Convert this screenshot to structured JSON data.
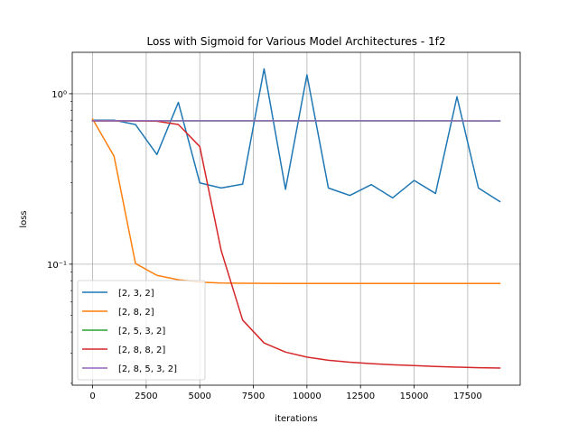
{
  "chart_data": {
    "type": "line",
    "title": "Loss with Sigmoid for Various Model Architectures - 1f2",
    "xlabel": "iterations",
    "ylabel": "loss",
    "yscale": "log",
    "xlim": [
      -950,
      19950
    ],
    "ylim": [
      0.0195,
      1.75
    ],
    "grid": true,
    "legend_position": "lower-left",
    "x_ticks": [
      0,
      2500,
      5000,
      7500,
      10000,
      12500,
      15000,
      17500
    ],
    "x_tick_labels": [
      "0",
      "2500",
      "5000",
      "7500",
      "10000",
      "12500",
      "15000",
      "17500"
    ],
    "y_major_ticks": [
      0.1,
      1.0
    ],
    "y_major_tick_labels": [
      "10⁻¹",
      "10⁰"
    ],
    "x": [
      0,
      1000,
      2000,
      3000,
      4000,
      5000,
      6000,
      7000,
      8000,
      9000,
      10000,
      11000,
      12000,
      13000,
      14000,
      15000,
      16000,
      17000,
      18000,
      19000
    ],
    "series": [
      {
        "name": "[2, 3, 2]",
        "color": "#1f77b4",
        "values": [
          0.7,
          0.7,
          0.66,
          0.44,
          0.89,
          0.3,
          0.28,
          0.295,
          1.4,
          0.275,
          1.29,
          0.28,
          0.253,
          0.293,
          0.245,
          0.31,
          0.26,
          0.96,
          0.28,
          0.233
        ]
      },
      {
        "name": "[2, 8, 2]",
        "color": "#ff7f0e",
        "values": [
          0.71,
          0.43,
          0.101,
          0.086,
          0.081,
          0.0785,
          0.0775,
          0.0773,
          0.0772,
          0.0771,
          0.0771,
          0.0771,
          0.0771,
          0.0771,
          0.077,
          0.077,
          0.077,
          0.077,
          0.077,
          0.077
        ]
      },
      {
        "name": "[2, 5, 3, 2]",
        "color": "#2ca02c",
        "values": [
          0.693,
          0.693,
          0.693,
          0.693,
          0.693,
          0.693,
          0.693,
          0.693,
          0.693,
          0.693,
          0.693,
          0.693,
          0.693,
          0.693,
          0.693,
          0.693,
          0.693,
          0.693,
          0.692,
          0.692
        ]
      },
      {
        "name": "[2, 8, 8, 2]",
        "color": "#d62728",
        "values": [
          0.693,
          0.693,
          0.693,
          0.69,
          0.66,
          0.49,
          0.12,
          0.047,
          0.0345,
          0.0305,
          0.0285,
          0.0273,
          0.0266,
          0.0261,
          0.0257,
          0.0254,
          0.0251,
          0.0249,
          0.0247,
          0.0246
        ]
      },
      {
        "name": "[2, 8, 5, 3, 2]",
        "color": "#9467bd",
        "values": [
          0.694,
          0.694,
          0.694,
          0.694,
          0.694,
          0.694,
          0.694,
          0.694,
          0.694,
          0.694,
          0.694,
          0.694,
          0.694,
          0.694,
          0.694,
          0.694,
          0.694,
          0.694,
          0.693,
          0.693
        ]
      }
    ]
  }
}
